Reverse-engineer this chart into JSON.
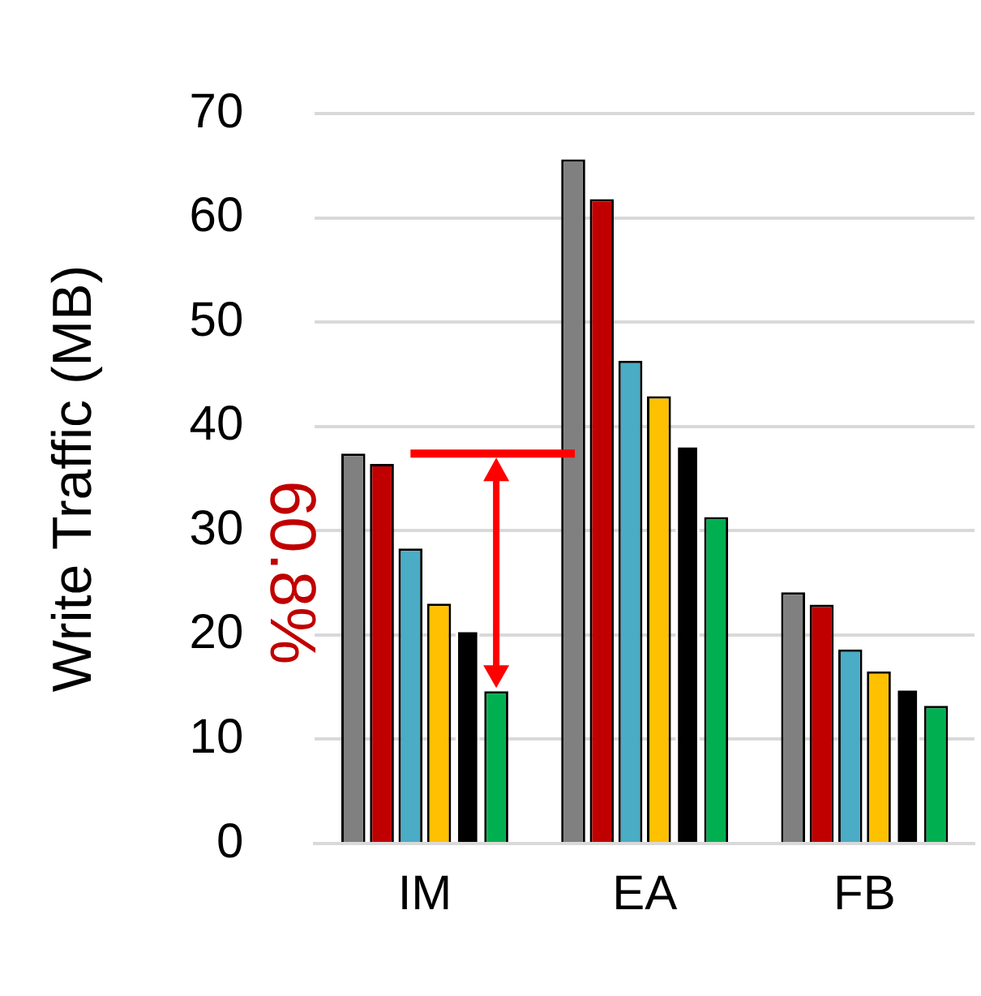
{
  "chart_data": {
    "type": "bar",
    "ylabel": "Write Traffic (MB)",
    "categories": [
      "IM",
      "EA",
      "FB"
    ],
    "series": [
      {
        "color": "#808080",
        "values": [
          37.4,
          65.6,
          24.1
        ]
      },
      {
        "color": "#c00000",
        "values": [
          36.4,
          61.8,
          22.9
        ]
      },
      {
        "color": "#4bacc6",
        "values": [
          28.3,
          46.3,
          18.6
        ]
      },
      {
        "color": "#ffc000",
        "values": [
          23.0,
          42.9,
          16.5
        ]
      },
      {
        "color": "#000000",
        "values": [
          20.5,
          38.2,
          14.9
        ]
      },
      {
        "color": "#00b050",
        "values": [
          14.6,
          31.3,
          13.2
        ]
      }
    ],
    "ylim": [
      0,
      70
    ],
    "yticks": [
      0,
      10,
      20,
      30,
      40,
      50,
      60,
      70
    ],
    "grid": "y",
    "legend": false,
    "annotations": [
      "60.8%"
    ]
  }
}
